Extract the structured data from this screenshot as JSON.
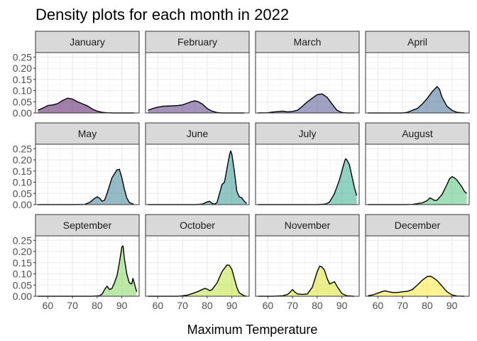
{
  "chart_data": {
    "type": "area",
    "title": "Density plots for each month in 2022",
    "xlabel": "Maximum Temperature",
    "ylabel": "",
    "xlim": [
      55,
      97
    ],
    "ylim": [
      0,
      0.27
    ],
    "x_ticks": [
      60,
      70,
      80,
      90
    ],
    "y_ticks": [
      0.0,
      0.05,
      0.1,
      0.15,
      0.2,
      0.25
    ],
    "y_tick_labels": [
      "0.00",
      "0.05",
      "0.10",
      "0.15",
      "0.20",
      "0.25"
    ],
    "grid": true,
    "facets": [
      {
        "name": "January",
        "color": "#440154",
        "points": [
          [
            56,
            0.012
          ],
          [
            58,
            0.022
          ],
          [
            60,
            0.033
          ],
          [
            62,
            0.036
          ],
          [
            64,
            0.042
          ],
          [
            66,
            0.056
          ],
          [
            68,
            0.066
          ],
          [
            70,
            0.062
          ],
          [
            72,
            0.05
          ],
          [
            74,
            0.041
          ],
          [
            76,
            0.032
          ],
          [
            78,
            0.018
          ],
          [
            80,
            0.008
          ],
          [
            82,
            0.003
          ],
          [
            84,
            0.001
          ],
          [
            86,
            0
          ],
          [
            90,
            0
          ],
          [
            95,
            0
          ]
        ]
      },
      {
        "name": "February",
        "color": "#482575",
        "points": [
          [
            56,
            0.012
          ],
          [
            58,
            0.02
          ],
          [
            60,
            0.026
          ],
          [
            62,
            0.03
          ],
          [
            64,
            0.031
          ],
          [
            66,
            0.032
          ],
          [
            68,
            0.033
          ],
          [
            70,
            0.036
          ],
          [
            72,
            0.044
          ],
          [
            74,
            0.052
          ],
          [
            75,
            0.054
          ],
          [
            76,
            0.052
          ],
          [
            78,
            0.04
          ],
          [
            80,
            0.02
          ],
          [
            82,
            0.008
          ],
          [
            84,
            0.002
          ],
          [
            86,
            0
          ],
          [
            90,
            0
          ],
          [
            95,
            0
          ]
        ]
      },
      {
        "name": "March",
        "color": "#414487",
        "points": [
          [
            56,
            0
          ],
          [
            60,
            0.001
          ],
          [
            62,
            0.004
          ],
          [
            64,
            0.006
          ],
          [
            66,
            0.008
          ],
          [
            68,
            0.005
          ],
          [
            70,
            0.007
          ],
          [
            72,
            0.012
          ],
          [
            74,
            0.03
          ],
          [
            76,
            0.05
          ],
          [
            78,
            0.066
          ],
          [
            80,
            0.082
          ],
          [
            82,
            0.085
          ],
          [
            84,
            0.07
          ],
          [
            86,
            0.04
          ],
          [
            88,
            0.012
          ],
          [
            90,
            0.002
          ],
          [
            92,
            0
          ],
          [
            95,
            0
          ]
        ]
      },
      {
        "name": "April",
        "color": "#35608D",
        "points": [
          [
            56,
            0
          ],
          [
            70,
            0
          ],
          [
            72,
            0.003
          ],
          [
            74,
            0.012
          ],
          [
            76,
            0.02
          ],
          [
            78,
            0.04
          ],
          [
            80,
            0.065
          ],
          [
            82,
            0.095
          ],
          [
            84,
            0.118
          ],
          [
            85,
            0.105
          ],
          [
            86,
            0.07
          ],
          [
            88,
            0.03
          ],
          [
            90,
            0.012
          ],
          [
            92,
            0.003
          ],
          [
            95,
            0
          ]
        ]
      },
      {
        "name": "May",
        "color": "#2A788E",
        "points": [
          [
            56,
            0
          ],
          [
            70,
            0
          ],
          [
            75,
            0.001
          ],
          [
            77,
            0.01
          ],
          [
            79,
            0.028
          ],
          [
            80,
            0.035
          ],
          [
            81,
            0.028
          ],
          [
            82,
            0.015
          ],
          [
            83,
            0.02
          ],
          [
            84,
            0.05
          ],
          [
            86,
            0.12
          ],
          [
            88,
            0.155
          ],
          [
            89,
            0.158
          ],
          [
            90,
            0.12
          ],
          [
            91,
            0.07
          ],
          [
            92,
            0.03
          ],
          [
            93,
            0.01
          ],
          [
            95,
            0
          ]
        ]
      },
      {
        "name": "June",
        "color": "#21908C",
        "points": [
          [
            56,
            0
          ],
          [
            75,
            0
          ],
          [
            78,
            0.002
          ],
          [
            80,
            0.012
          ],
          [
            81,
            0.015
          ],
          [
            82,
            0.005
          ],
          [
            83,
            0.002
          ],
          [
            84,
            0.01
          ],
          [
            85,
            0.05
          ],
          [
            86,
            0.09
          ],
          [
            87,
            0.1
          ],
          [
            88,
            0.16
          ],
          [
            89,
            0.22
          ],
          [
            89.5,
            0.24
          ],
          [
            90,
            0.225
          ],
          [
            91,
            0.15
          ],
          [
            92,
            0.06
          ],
          [
            93,
            0.035
          ],
          [
            94,
            0.03
          ],
          [
            95,
            0.015
          ],
          [
            96,
            0.005
          ]
        ]
      },
      {
        "name": "July",
        "color": "#22A884",
        "points": [
          [
            56,
            0
          ],
          [
            80,
            0
          ],
          [
            83,
            0.002
          ],
          [
            84,
            0.005
          ],
          [
            85,
            0.012
          ],
          [
            86,
            0.03
          ],
          [
            87,
            0.05
          ],
          [
            88,
            0.08
          ],
          [
            89,
            0.11
          ],
          [
            90,
            0.15
          ],
          [
            91,
            0.19
          ],
          [
            91.5,
            0.205
          ],
          [
            92,
            0.2
          ],
          [
            93,
            0.18
          ],
          [
            94,
            0.13
          ],
          [
            95,
            0.08
          ],
          [
            96,
            0.04
          ]
        ]
      },
      {
        "name": "August",
        "color": "#43BF71",
        "points": [
          [
            56,
            0
          ],
          [
            70,
            0
          ],
          [
            74,
            0.001
          ],
          [
            76,
            0.004
          ],
          [
            78,
            0.008
          ],
          [
            80,
            0.018
          ],
          [
            81,
            0.03
          ],
          [
            82,
            0.025
          ],
          [
            83,
            0.018
          ],
          [
            84,
            0.02
          ],
          [
            86,
            0.045
          ],
          [
            88,
            0.09
          ],
          [
            89,
            0.115
          ],
          [
            90,
            0.125
          ],
          [
            91,
            0.12
          ],
          [
            92,
            0.11
          ],
          [
            93,
            0.095
          ],
          [
            94,
            0.08
          ],
          [
            95,
            0.06
          ],
          [
            96,
            0.05
          ]
        ]
      },
      {
        "name": "September",
        "color": "#7AD151",
        "points": [
          [
            56,
            0
          ],
          [
            78,
            0
          ],
          [
            81,
            0.002
          ],
          [
            82,
            0.01
          ],
          [
            83,
            0.03
          ],
          [
            84,
            0.045
          ],
          [
            85,
            0.03
          ],
          [
            86,
            0.035
          ],
          [
            87,
            0.06
          ],
          [
            88,
            0.09
          ],
          [
            89,
            0.15
          ],
          [
            90,
            0.22
          ],
          [
            90.5,
            0.225
          ],
          [
            91,
            0.17
          ],
          [
            92,
            0.1
          ],
          [
            93,
            0.06
          ],
          [
            94,
            0.055
          ],
          [
            94.5,
            0.08
          ],
          [
            95,
            0.06
          ],
          [
            96,
            0.02
          ]
        ]
      },
      {
        "name": "October",
        "color": "#BBDF27",
        "points": [
          [
            56,
            0
          ],
          [
            68,
            0
          ],
          [
            70,
            0.002
          ],
          [
            72,
            0.005
          ],
          [
            74,
            0.012
          ],
          [
            76,
            0.02
          ],
          [
            78,
            0.03
          ],
          [
            79,
            0.035
          ],
          [
            80,
            0.032
          ],
          [
            81,
            0.025
          ],
          [
            82,
            0.03
          ],
          [
            84,
            0.06
          ],
          [
            86,
            0.11
          ],
          [
            88,
            0.14
          ],
          [
            89,
            0.138
          ],
          [
            90,
            0.12
          ],
          [
            91,
            0.08
          ],
          [
            92,
            0.04
          ],
          [
            93,
            0.015
          ],
          [
            95,
            0.002
          ],
          [
            96,
            0
          ]
        ]
      },
      {
        "name": "November",
        "color": "#D8E219",
        "points": [
          [
            56,
            0
          ],
          [
            62,
            0
          ],
          [
            66,
            0.002
          ],
          [
            68,
            0.008
          ],
          [
            69,
            0.018
          ],
          [
            70,
            0.03
          ],
          [
            71,
            0.018
          ],
          [
            72,
            0.01
          ],
          [
            74,
            0.008
          ],
          [
            76,
            0.01
          ],
          [
            78,
            0.04
          ],
          [
            80,
            0.11
          ],
          [
            81,
            0.135
          ],
          [
            82,
            0.13
          ],
          [
            83,
            0.115
          ],
          [
            84,
            0.08
          ],
          [
            85,
            0.055
          ],
          [
            86,
            0.06
          ],
          [
            87,
            0.065
          ],
          [
            88,
            0.045
          ],
          [
            90,
            0.012
          ],
          [
            92,
            0.002
          ],
          [
            95,
            0
          ]
        ]
      },
      {
        "name": "December",
        "color": "#FDE725",
        "points": [
          [
            56,
            0.002
          ],
          [
            58,
            0.006
          ],
          [
            60,
            0.014
          ],
          [
            62,
            0.022
          ],
          [
            63,
            0.024
          ],
          [
            64,
            0.021
          ],
          [
            66,
            0.017
          ],
          [
            68,
            0.017
          ],
          [
            70,
            0.02
          ],
          [
            72,
            0.022
          ],
          [
            74,
            0.03
          ],
          [
            76,
            0.05
          ],
          [
            78,
            0.072
          ],
          [
            80,
            0.088
          ],
          [
            81,
            0.09
          ],
          [
            82,
            0.086
          ],
          [
            84,
            0.07
          ],
          [
            86,
            0.045
          ],
          [
            88,
            0.02
          ],
          [
            90,
            0.006
          ],
          [
            92,
            0.001
          ],
          [
            95,
            0
          ]
        ]
      }
    ]
  }
}
